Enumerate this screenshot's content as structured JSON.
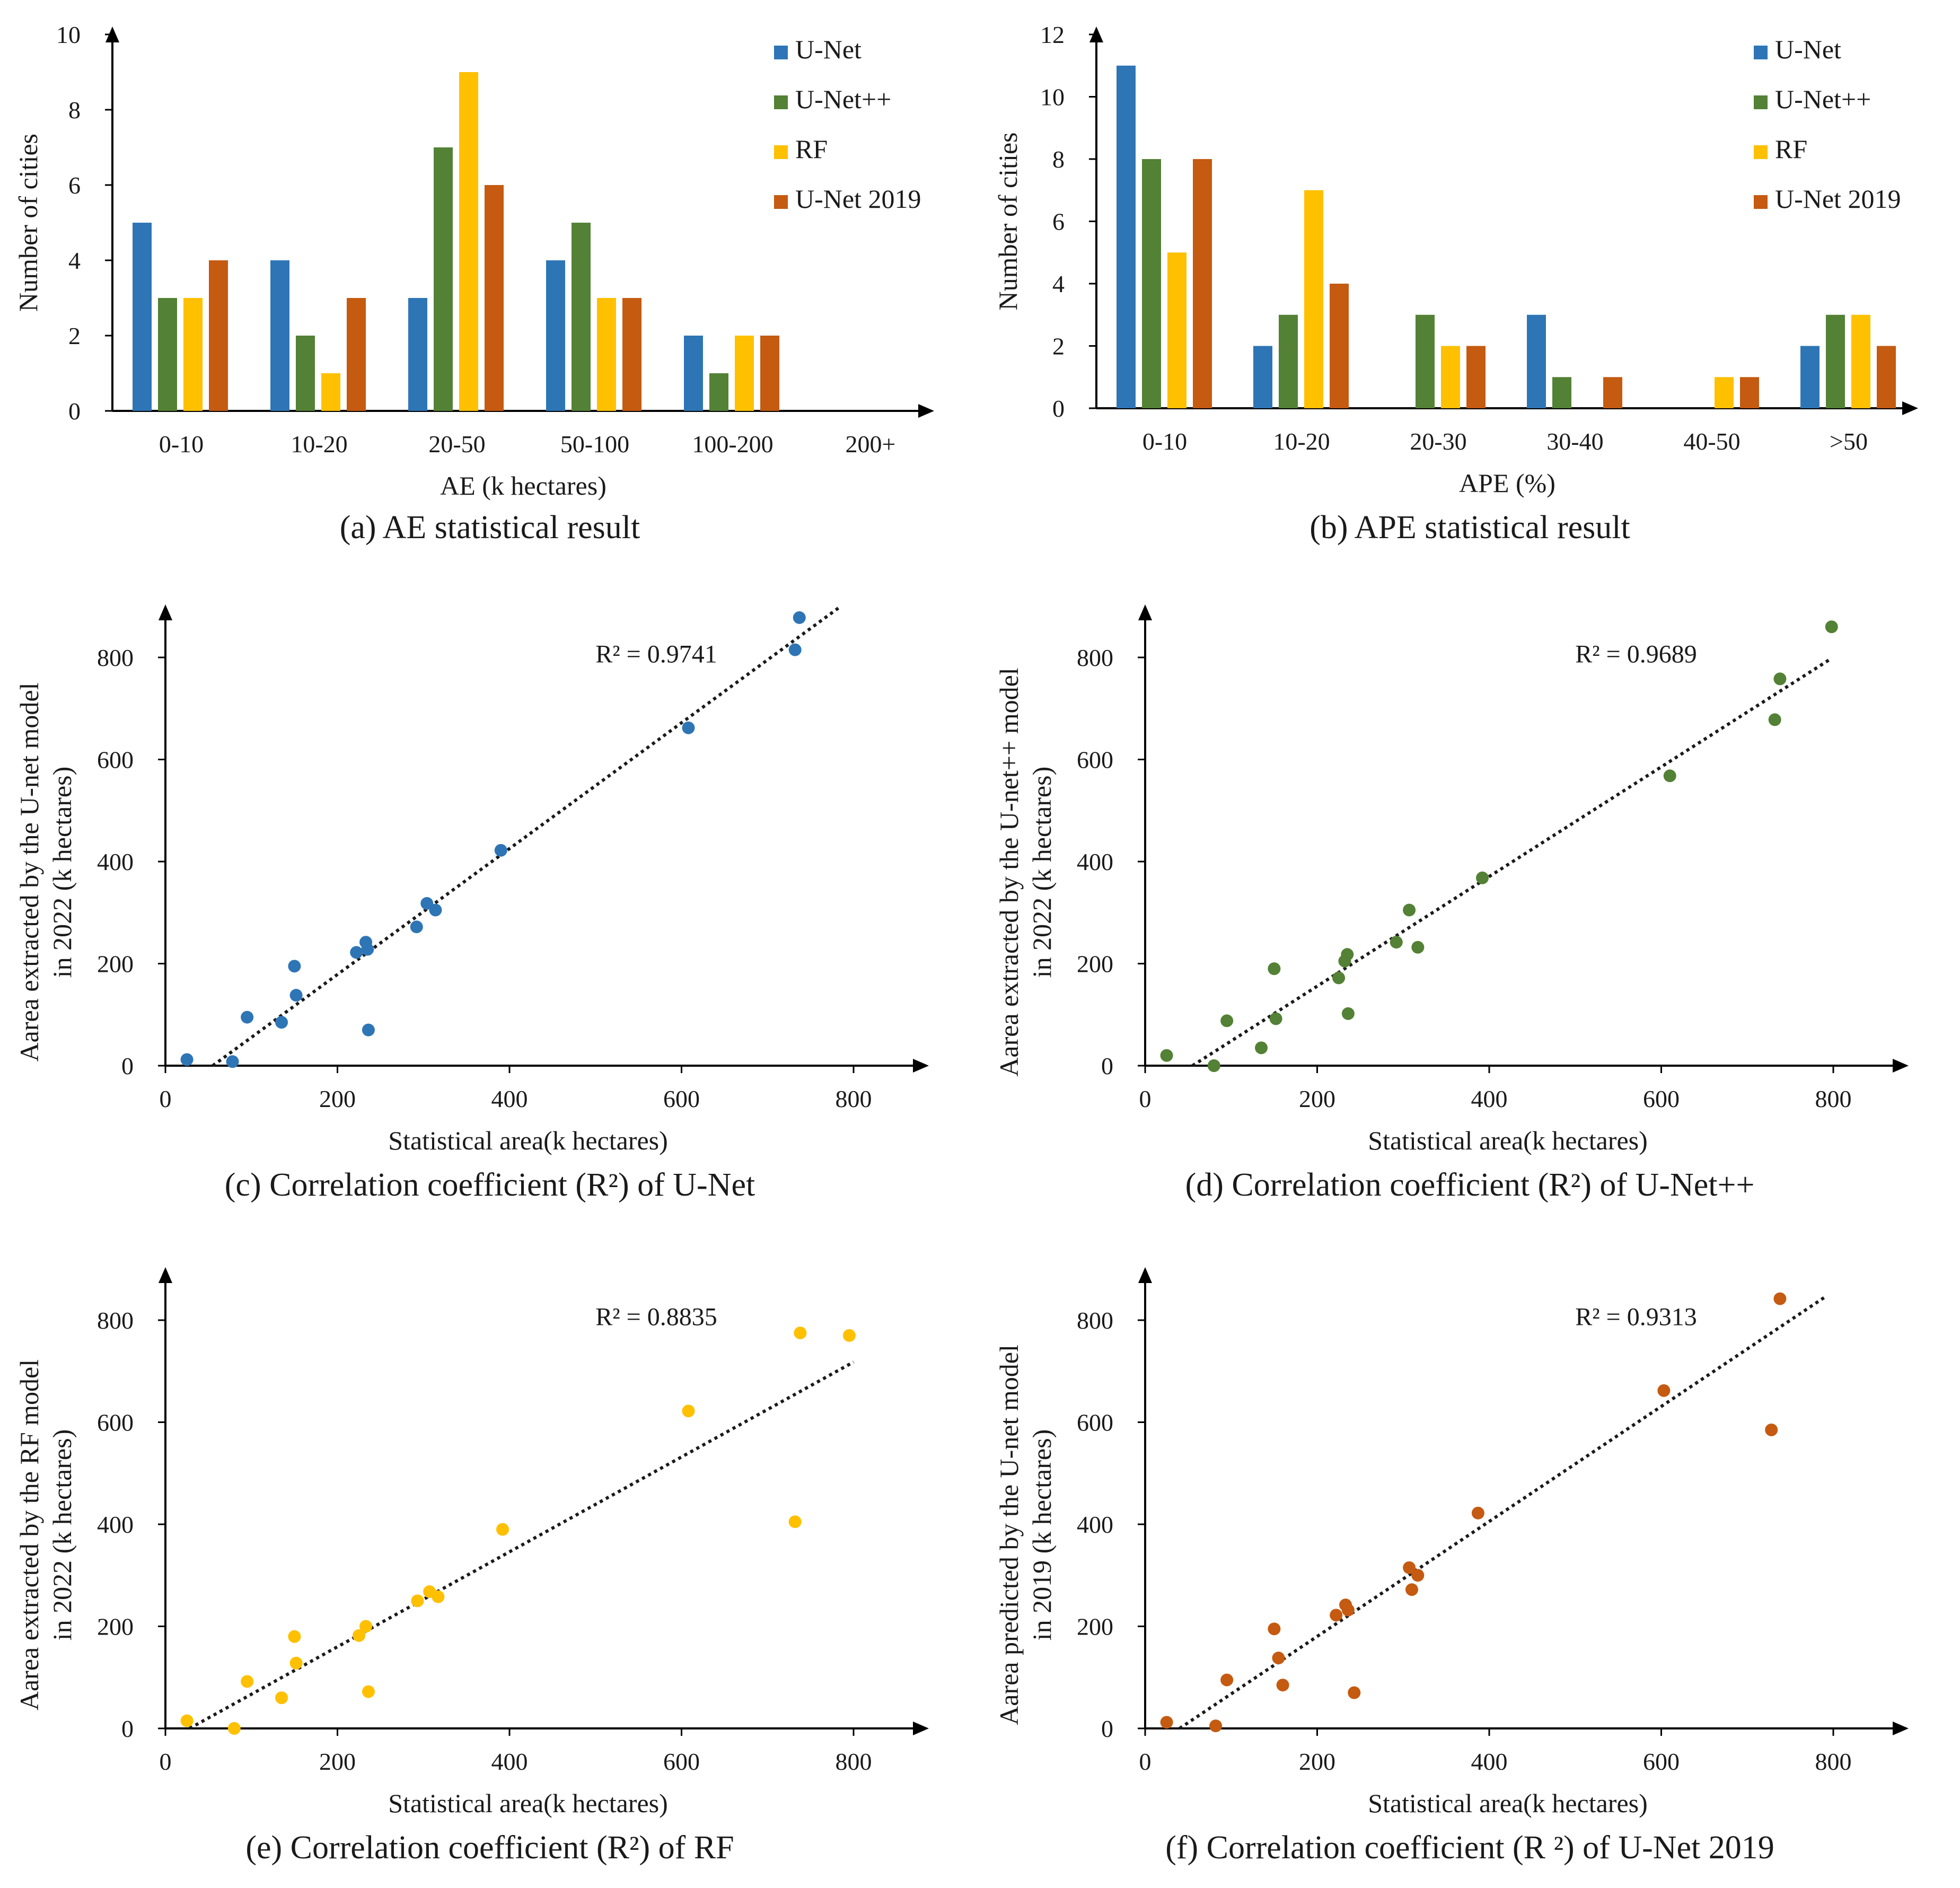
{
  "colors": {
    "unet": "#2e75b6",
    "unetpp": "#538135",
    "rf": "#ffc000",
    "unet2019": "#c55a11",
    "axis": "#000000"
  },
  "panels": {
    "a": {
      "caption": "(a) AE statistical result"
    },
    "b": {
      "caption": "(b) APE statistical result"
    },
    "c": {
      "caption": "(c) Correlation coefficient (R²) of U-Net"
    },
    "d": {
      "caption": "(d) Correlation coefficient (R²) of U-Net++"
    },
    "e": {
      "caption": "(e) Correlation coefficient (R²) of RF"
    },
    "f": {
      "caption": "(f) Correlation coefficient (R ²) of U-Net 2019"
    }
  },
  "chart_data": [
    {
      "id": "a",
      "type": "bar",
      "categories": [
        "0-10",
        "10-20",
        "20-50",
        "50-100",
        "100-200",
        "200+"
      ],
      "series": [
        {
          "name": "U-Net",
          "color": "#2e75b6",
          "values": [
            5,
            4,
            3,
            4,
            2,
            0
          ]
        },
        {
          "name": "U-Net++",
          "color": "#538135",
          "values": [
            3,
            2,
            7,
            5,
            1,
            0
          ]
        },
        {
          "name": "RF",
          "color": "#ffc000",
          "values": [
            3,
            1,
            9,
            3,
            2,
            0
          ]
        },
        {
          "name": "U-Net 2019",
          "color": "#c55a11",
          "values": [
            4,
            3,
            6,
            3,
            2,
            0
          ]
        }
      ],
      "xlabel": "AE (k hectares)",
      "ylabel": "Number of cities",
      "ylim": [
        0,
        10
      ],
      "yticks": [
        "0",
        "2",
        "4",
        "6",
        "8",
        "10"
      ],
      "legend": "top-right"
    },
    {
      "id": "b",
      "type": "bar",
      "categories": [
        "0-10",
        "10-20",
        "20-30",
        "30-40",
        "40-50",
        ">50"
      ],
      "series": [
        {
          "name": "U-Net",
          "color": "#2e75b6",
          "values": [
            11,
            2,
            0,
            3,
            0,
            2
          ]
        },
        {
          "name": "U-Net++",
          "color": "#538135",
          "values": [
            8,
            3,
            3,
            1,
            0,
            3
          ]
        },
        {
          "name": "RF",
          "color": "#ffc000",
          "values": [
            5,
            7,
            2,
            0,
            1,
            3
          ]
        },
        {
          "name": "U-Net 2019",
          "color": "#c55a11",
          "values": [
            8,
            4,
            2,
            1,
            1,
            2
          ]
        }
      ],
      "xlabel": "APE (%)",
      "ylabel": "Number of cities",
      "ylim": [
        0,
        12
      ],
      "yticks": [
        "0",
        "2",
        "4",
        "6",
        "8",
        "10",
        "12"
      ],
      "legend": "top-right"
    },
    {
      "id": "c",
      "type": "scatter",
      "color": "#2e75b6",
      "xlabel": "Statistical area(k hectares)",
      "ylabel_lines": [
        "Aarea extracted by the U-net model",
        "in 2022 (k hectares)"
      ],
      "xlim": [
        0,
        900
      ],
      "ylim": [
        0,
        900
      ],
      "xticks": [
        "0",
        "200",
        "400",
        "600",
        "800"
      ],
      "yticks": [
        "0",
        "200",
        "400",
        "600",
        "800"
      ],
      "r2_label": "R² = 0.9741",
      "trendline": [
        [
          55,
          0
        ],
        [
          785,
          900
        ]
      ],
      "points": [
        [
          25,
          12
        ],
        [
          78,
          8
        ],
        [
          95,
          95
        ],
        [
          135,
          85
        ],
        [
          150,
          195
        ],
        [
          152,
          138
        ],
        [
          222,
          222
        ],
        [
          233,
          242
        ],
        [
          235,
          228
        ],
        [
          236,
          70
        ],
        [
          292,
          272
        ],
        [
          304,
          318
        ],
        [
          314,
          305
        ],
        [
          390,
          422
        ],
        [
          608,
          662
        ],
        [
          732,
          815
        ],
        [
          737,
          878
        ]
      ]
    },
    {
      "id": "d",
      "type": "scatter",
      "color": "#538135",
      "xlabel": "Statistical area(k hectares)",
      "ylabel_lines": [
        "Aarea extracted by the U-net++ model",
        "in 2022 (k hectares)"
      ],
      "xlim": [
        0,
        900
      ],
      "ylim": [
        0,
        900
      ],
      "xticks": [
        "0",
        "200",
        "400",
        "600",
        "800"
      ],
      "yticks": [
        "0",
        "200",
        "400",
        "600",
        "800"
      ],
      "r2_label": "R² = 0.9689",
      "trendline": [
        [
          55,
          0
        ],
        [
          795,
          795
        ]
      ],
      "points": [
        [
          25,
          20
        ],
        [
          80,
          0
        ],
        [
          95,
          88
        ],
        [
          135,
          35
        ],
        [
          150,
          190
        ],
        [
          152,
          92
        ],
        [
          225,
          172
        ],
        [
          232,
          205
        ],
        [
          235,
          218
        ],
        [
          236,
          102
        ],
        [
          292,
          242
        ],
        [
          307,
          305
        ],
        [
          317,
          232
        ],
        [
          392,
          368
        ],
        [
          610,
          568
        ],
        [
          732,
          678
        ],
        [
          738,
          758
        ],
        [
          798,
          860
        ]
      ]
    },
    {
      "id": "e",
      "type": "scatter",
      "color": "#ffc000",
      "xlabel": "Statistical area(k hectares)",
      "ylabel_lines": [
        "Aarea extracted by the RF model",
        "in 2022 (k hectares)"
      ],
      "xlim": [
        0,
        900
      ],
      "ylim": [
        0,
        900
      ],
      "xticks": [
        "0",
        "200",
        "400",
        "600",
        "800"
      ],
      "yticks": [
        "0",
        "200",
        "400",
        "600",
        "800"
      ],
      "r2_label": "R² = 0.8835",
      "trendline": [
        [
          28,
          0
        ],
        [
          800,
          718
        ]
      ],
      "points": [
        [
          25,
          15
        ],
        [
          80,
          0
        ],
        [
          95,
          92
        ],
        [
          135,
          60
        ],
        [
          150,
          180
        ],
        [
          152,
          128
        ],
        [
          225,
          182
        ],
        [
          233,
          200
        ],
        [
          236,
          72
        ],
        [
          293,
          250
        ],
        [
          307,
          268
        ],
        [
          317,
          258
        ],
        [
          392,
          390
        ],
        [
          608,
          622
        ],
        [
          732,
          405
        ],
        [
          738,
          775
        ],
        [
          795,
          770
        ]
      ]
    },
    {
      "id": "f",
      "type": "scatter",
      "color": "#c55a11",
      "xlabel": "Statistical area(k hectares)",
      "ylabel_lines": [
        "Aarea predicted by the U-net model",
        "in 2019 (k hectares)"
      ],
      "xlim": [
        0,
        900
      ],
      "ylim": [
        0,
        900
      ],
      "xticks": [
        "0",
        "200",
        "400",
        "600",
        "800"
      ],
      "yticks": [
        "0",
        "200",
        "400",
        "600",
        "800"
      ],
      "r2_label": "R² = 0.9313",
      "trendline": [
        [
          40,
          0
        ],
        [
          790,
          845
        ]
      ],
      "points": [
        [
          25,
          12
        ],
        [
          82,
          5
        ],
        [
          95,
          95
        ],
        [
          150,
          195
        ],
        [
          155,
          138
        ],
        [
          160,
          85
        ],
        [
          222,
          222
        ],
        [
          233,
          242
        ],
        [
          236,
          232
        ],
        [
          243,
          70
        ],
        [
          307,
          315
        ],
        [
          310,
          272
        ],
        [
          317,
          300
        ],
        [
          387,
          422
        ],
        [
          603,
          662
        ],
        [
          728,
          585
        ],
        [
          738,
          842
        ]
      ]
    }
  ]
}
